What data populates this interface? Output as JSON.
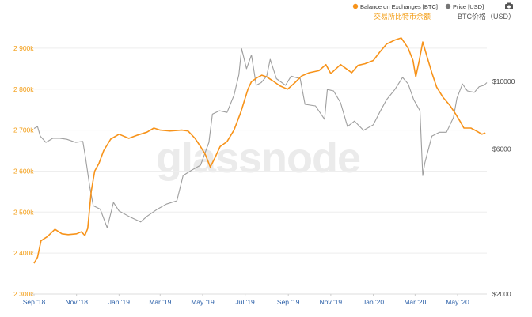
{
  "watermark": "glassnode",
  "colors": {
    "balance": "#f7931a",
    "price": "#9e9e9e",
    "camera": "#555555"
  },
  "legend": {
    "balance_label": "Balance on Exchanges [BTC]",
    "price_label": "Price [USD]",
    "balance_cn": "交易所比特币余额",
    "price_cn": "BTC价格（USD）",
    "camera_icon": "camera-icon"
  },
  "chart_data": {
    "type": "line",
    "x_ticks": [
      "Sep '18",
      "Nov '18",
      "Jan '19",
      "Mar '19",
      "May '19",
      "Jul '19",
      "Sep '19",
      "Nov '19",
      "Jan '20",
      "Mar '20",
      "May '20"
    ],
    "y_left": {
      "ticks": [
        "2 300k",
        "2 400k",
        "2 500k",
        "2 600k",
        "2 700k",
        "2 800k",
        "2 900k"
      ],
      "range": [
        2300000,
        2950000
      ]
    },
    "y_right": {
      "ticks": [
        "$2000",
        "$6000",
        "$10000"
      ],
      "scale": "log",
      "range": [
        2000,
        15000
      ]
    },
    "x_range": [
      "2018-09-01",
      "2020-06-12"
    ],
    "series": [
      {
        "name": "Balance on Exchanges [BTC]",
        "axis": "left",
        "points": [
          [
            "2018-09-01",
            2375000
          ],
          [
            "2018-09-06",
            2390000
          ],
          [
            "2018-09-11",
            2430000
          ],
          [
            "2018-09-20",
            2440000
          ],
          [
            "2018-10-01",
            2458000
          ],
          [
            "2018-10-11",
            2447000
          ],
          [
            "2018-10-20",
            2445000
          ],
          [
            "2018-11-01",
            2447000
          ],
          [
            "2018-11-08",
            2452000
          ],
          [
            "2018-11-13",
            2443000
          ],
          [
            "2018-11-17",
            2460000
          ],
          [
            "2018-11-22",
            2550000
          ],
          [
            "2018-11-27",
            2600000
          ],
          [
            "2018-12-03",
            2618000
          ],
          [
            "2018-12-10",
            2650000
          ],
          [
            "2018-12-20",
            2678000
          ],
          [
            "2019-01-01",
            2690000
          ],
          [
            "2019-01-15",
            2680000
          ],
          [
            "2019-01-28",
            2688000
          ],
          [
            "2019-02-10",
            2695000
          ],
          [
            "2019-02-20",
            2705000
          ],
          [
            "2019-03-01",
            2700000
          ],
          [
            "2019-03-15",
            2698000
          ],
          [
            "2019-04-01",
            2700000
          ],
          [
            "2019-04-10",
            2698000
          ],
          [
            "2019-04-20",
            2680000
          ],
          [
            "2019-04-28",
            2660000
          ],
          [
            "2019-05-05",
            2640000
          ],
          [
            "2019-05-12",
            2610000
          ],
          [
            "2019-05-18",
            2630000
          ],
          [
            "2019-05-26",
            2660000
          ],
          [
            "2019-06-05",
            2672000
          ],
          [
            "2019-06-15",
            2700000
          ],
          [
            "2019-06-25",
            2745000
          ],
          [
            "2019-07-05",
            2800000
          ],
          [
            "2019-07-10",
            2818000
          ],
          [
            "2019-07-18",
            2828000
          ],
          [
            "2019-07-25",
            2834000
          ],
          [
            "2019-08-01",
            2830000
          ],
          [
            "2019-08-10",
            2820000
          ],
          [
            "2019-08-20",
            2808000
          ],
          [
            "2019-08-31",
            2800000
          ],
          [
            "2019-09-10",
            2815000
          ],
          [
            "2019-09-20",
            2832000
          ],
          [
            "2019-10-01",
            2840000
          ],
          [
            "2019-10-15",
            2845000
          ],
          [
            "2019-10-25",
            2860000
          ],
          [
            "2019-11-01",
            2838000
          ],
          [
            "2019-11-15",
            2860000
          ],
          [
            "2019-12-01",
            2840000
          ],
          [
            "2019-12-10",
            2858000
          ],
          [
            "2019-12-20",
            2862000
          ],
          [
            "2020-01-01",
            2870000
          ],
          [
            "2020-01-10",
            2890000
          ],
          [
            "2020-01-20",
            2910000
          ],
          [
            "2020-02-01",
            2920000
          ],
          [
            "2020-02-10",
            2925000
          ],
          [
            "2020-02-20",
            2900000
          ],
          [
            "2020-02-27",
            2870000
          ],
          [
            "2020-03-02",
            2830000
          ],
          [
            "2020-03-07",
            2870000
          ],
          [
            "2020-03-12",
            2915000
          ],
          [
            "2020-03-18",
            2880000
          ],
          [
            "2020-03-25",
            2840000
          ],
          [
            "2020-04-01",
            2805000
          ],
          [
            "2020-04-10",
            2780000
          ],
          [
            "2020-04-20",
            2760000
          ],
          [
            "2020-04-28",
            2740000
          ],
          [
            "2020-05-05",
            2720000
          ],
          [
            "2020-05-10",
            2705000
          ],
          [
            "2020-05-20",
            2705000
          ],
          [
            "2020-05-28",
            2698000
          ],
          [
            "2020-06-05",
            2690000
          ],
          [
            "2020-06-10",
            2693000
          ]
        ]
      },
      {
        "name": "Price [USD]",
        "axis": "right",
        "points": [
          [
            "2018-09-01",
            7000
          ],
          [
            "2018-09-06",
            7100
          ],
          [
            "2018-09-10",
            6600
          ],
          [
            "2018-09-18",
            6300
          ],
          [
            "2018-09-28",
            6500
          ],
          [
            "2018-10-08",
            6500
          ],
          [
            "2018-10-18",
            6450
          ],
          [
            "2018-10-31",
            6300
          ],
          [
            "2018-11-10",
            6350
          ],
          [
            "2018-11-14",
            5600
          ],
          [
            "2018-11-20",
            4500
          ],
          [
            "2018-11-25",
            3900
          ],
          [
            "2018-12-05",
            3800
          ],
          [
            "2018-12-15",
            3300
          ],
          [
            "2018-12-24",
            4000
          ],
          [
            "2019-01-01",
            3750
          ],
          [
            "2019-01-15",
            3600
          ],
          [
            "2019-02-01",
            3450
          ],
          [
            "2019-02-10",
            3600
          ],
          [
            "2019-02-25",
            3800
          ],
          [
            "2019-03-10",
            3950
          ],
          [
            "2019-03-25",
            4050
          ],
          [
            "2019-04-03",
            4900
          ],
          [
            "2019-04-15",
            5100
          ],
          [
            "2019-04-28",
            5300
          ],
          [
            "2019-05-10",
            6300
          ],
          [
            "2019-05-15",
            7800
          ],
          [
            "2019-05-25",
            8000
          ],
          [
            "2019-06-05",
            7900
          ],
          [
            "2019-06-15",
            9000
          ],
          [
            "2019-06-22",
            10500
          ],
          [
            "2019-06-26",
            12800
          ],
          [
            "2019-07-03",
            11000
          ],
          [
            "2019-07-10",
            12200
          ],
          [
            "2019-07-17",
            9700
          ],
          [
            "2019-07-24",
            9900
          ],
          [
            "2019-08-01",
            10400
          ],
          [
            "2019-08-06",
            11800
          ],
          [
            "2019-08-15",
            10200
          ],
          [
            "2019-08-28",
            9700
          ],
          [
            "2019-09-05",
            10400
          ],
          [
            "2019-09-18",
            10200
          ],
          [
            "2019-09-25",
            8400
          ],
          [
            "2019-10-10",
            8300
          ],
          [
            "2019-10-23",
            7500
          ],
          [
            "2019-10-27",
            9400
          ],
          [
            "2019-11-05",
            9300
          ],
          [
            "2019-11-15",
            8500
          ],
          [
            "2019-11-25",
            7100
          ],
          [
            "2019-12-05",
            7400
          ],
          [
            "2019-12-18",
            6900
          ],
          [
            "2020-01-01",
            7200
          ],
          [
            "2020-01-10",
            7900
          ],
          [
            "2020-01-20",
            8700
          ],
          [
            "2020-02-01",
            9400
          ],
          [
            "2020-02-12",
            10300
          ],
          [
            "2020-02-20",
            9800
          ],
          [
            "2020-02-28",
            8700
          ],
          [
            "2020-03-08",
            8000
          ],
          [
            "2020-03-12",
            4900
          ],
          [
            "2020-03-15",
            5400
          ],
          [
            "2020-03-25",
            6600
          ],
          [
            "2020-04-05",
            6800
          ],
          [
            "2020-04-15",
            6800
          ],
          [
            "2020-04-25",
            7600
          ],
          [
            "2020-04-30",
            8800
          ],
          [
            "2020-05-08",
            9800
          ],
          [
            "2020-05-15",
            9300
          ],
          [
            "2020-05-25",
            9200
          ],
          [
            "2020-06-01",
            9600
          ],
          [
            "2020-06-08",
            9700
          ],
          [
            "2020-06-12",
            9900
          ]
        ]
      }
    ]
  }
}
